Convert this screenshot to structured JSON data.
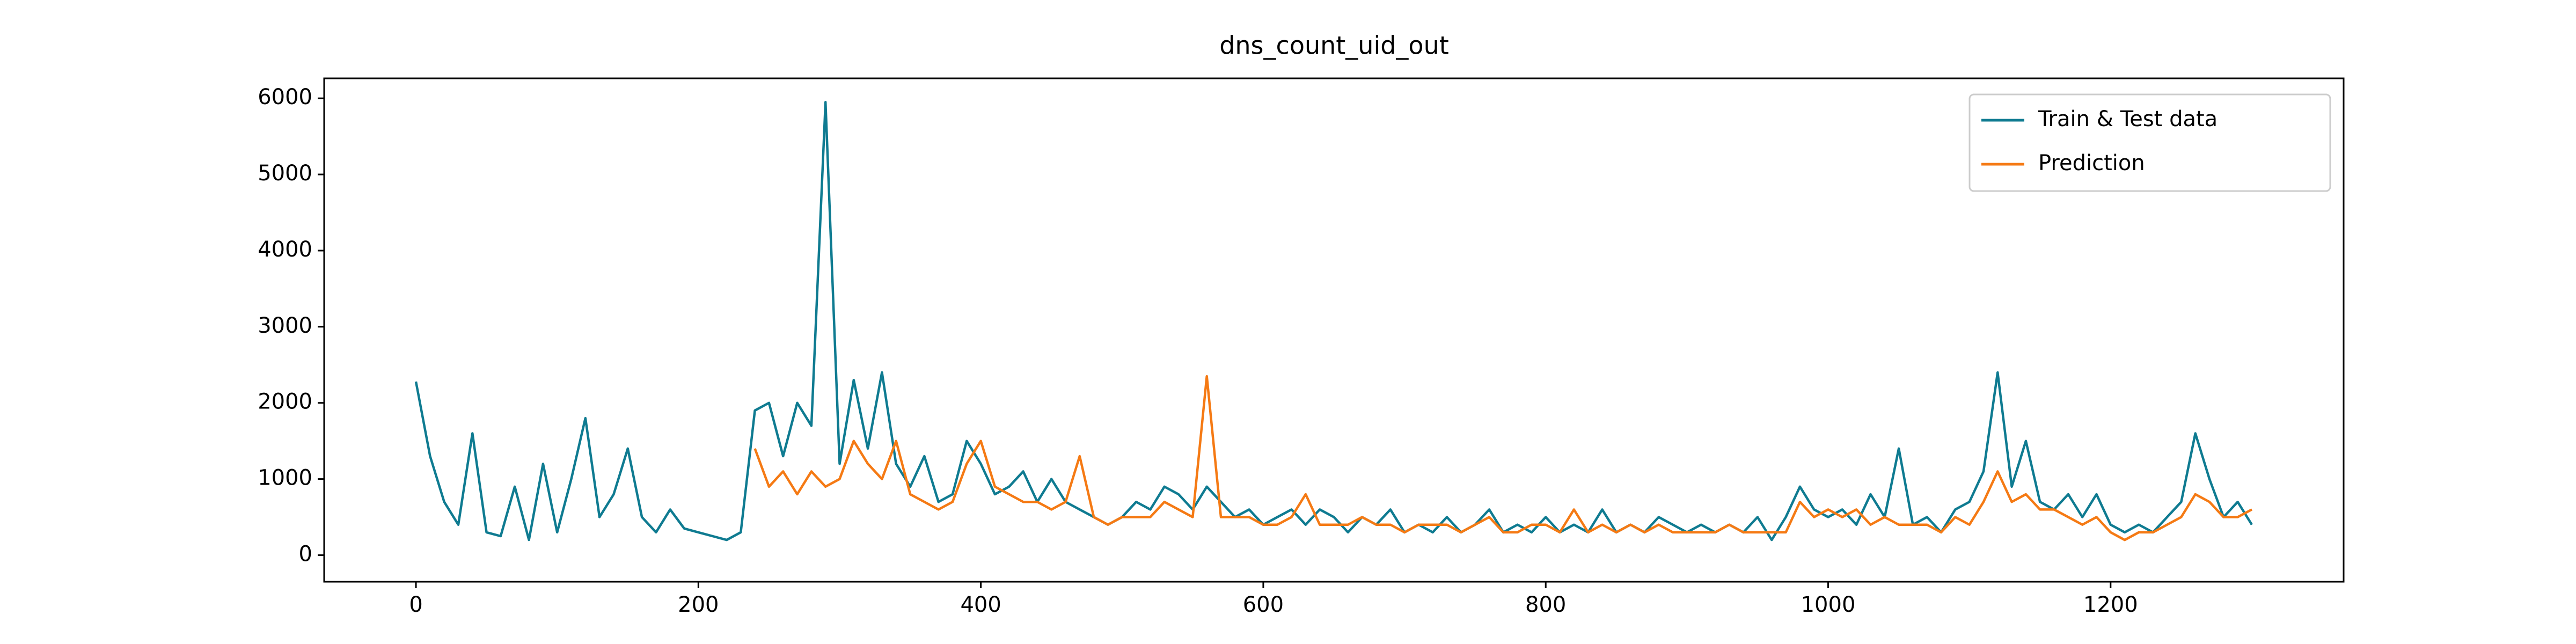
{
  "chart_data": {
    "type": "line",
    "title": "dns_count_uid_out",
    "x": [
      0,
      10,
      20,
      30,
      40,
      50,
      60,
      70,
      80,
      90,
      100,
      110,
      120,
      130,
      140,
      150,
      160,
      170,
      180,
      190,
      200,
      210,
      220,
      230,
      240,
      250,
      260,
      270,
      280,
      290,
      300,
      310,
      320,
      330,
      340,
      350,
      360,
      370,
      380,
      390,
      400,
      410,
      420,
      430,
      440,
      450,
      460,
      470,
      480,
      490,
      500,
      510,
      520,
      530,
      540,
      550,
      560,
      570,
      580,
      590,
      600,
      610,
      620,
      630,
      640,
      650,
      660,
      670,
      680,
      690,
      700,
      710,
      720,
      730,
      740,
      750,
      760,
      770,
      780,
      790,
      800,
      810,
      820,
      830,
      840,
      850,
      860,
      870,
      880,
      890,
      900,
      910,
      920,
      930,
      940,
      950,
      960,
      970,
      980,
      990,
      1000,
      1010,
      1020,
      1030,
      1040,
      1050,
      1060,
      1070,
      1080,
      1090,
      1100,
      1110,
      1120,
      1130,
      1140,
      1150,
      1160,
      1170,
      1180,
      1190,
      1200,
      1210,
      1220,
      1230,
      1240,
      1250,
      1260,
      1270,
      1280,
      1290,
      1300
    ],
    "series": [
      {
        "name": "Train & Test data",
        "color": "#0f7b91",
        "values": [
          2280,
          1300,
          700,
          400,
          1600,
          300,
          250,
          900,
          200,
          1200,
          300,
          1000,
          1800,
          500,
          800,
          1400,
          500,
          300,
          600,
          350,
          300,
          250,
          200,
          300,
          1900,
          2000,
          1300,
          2000,
          1700,
          5950,
          1200,
          2300,
          1400,
          2400,
          1200,
          900,
          1300,
          700,
          800,
          1500,
          1200,
          800,
          900,
          1100,
          700,
          1000,
          700,
          600,
          500,
          400,
          500,
          700,
          600,
          900,
          800,
          600,
          900,
          700,
          500,
          600,
          400,
          500,
          600,
          400,
          600,
          500,
          300,
          500,
          400,
          600,
          300,
          400,
          300,
          500,
          300,
          400,
          600,
          300,
          400,
          300,
          500,
          300,
          400,
          300,
          600,
          300,
          400,
          300,
          500,
          400,
          300,
          400,
          300,
          400,
          300,
          500,
          200,
          500,
          900,
          600,
          500,
          600,
          400,
          800,
          500,
          1400,
          400,
          500,
          300,
          600,
          700,
          1100,
          2400,
          900,
          1500,
          700,
          600,
          800,
          500,
          800,
          400,
          300,
          400,
          300,
          500,
          700,
          1600,
          1000,
          500,
          700,
          400
        ]
      },
      {
        "name": "Prediction",
        "color": "#f57a14",
        "values": [
          null,
          null,
          null,
          null,
          null,
          null,
          null,
          null,
          null,
          null,
          null,
          null,
          null,
          null,
          null,
          null,
          null,
          null,
          null,
          null,
          null,
          null,
          null,
          null,
          1400,
          900,
          1100,
          800,
          1100,
          900,
          1000,
          1500,
          1200,
          1000,
          1500,
          800,
          700,
          600,
          700,
          1200,
          1500,
          900,
          800,
          700,
          700,
          600,
          700,
          1300,
          500,
          400,
          500,
          500,
          500,
          700,
          600,
          500,
          2350,
          500,
          500,
          500,
          400,
          400,
          500,
          800,
          400,
          400,
          400,
          500,
          400,
          400,
          300,
          400,
          400,
          400,
          300,
          400,
          500,
          300,
          300,
          400,
          400,
          300,
          600,
          300,
          400,
          300,
          400,
          300,
          400,
          300,
          300,
          300,
          300,
          400,
          300,
          300,
          300,
          300,
          700,
          500,
          600,
          500,
          600,
          400,
          500,
          400,
          400,
          400,
          300,
          500,
          400,
          700,
          1100,
          700,
          800,
          600,
          600,
          500,
          400,
          500,
          300,
          200,
          300,
          300,
          400,
          500,
          800,
          700,
          500,
          500,
          600
        ]
      }
    ],
    "xlim": [
      -65,
      1365
    ],
    "ylim": [
      -349,
      6262
    ],
    "xticks": [
      0,
      200,
      400,
      600,
      800,
      1000,
      1200
    ],
    "yticks": [
      0,
      1000,
      2000,
      3000,
      4000,
      5000,
      6000
    ],
    "legend": "upper right"
  }
}
